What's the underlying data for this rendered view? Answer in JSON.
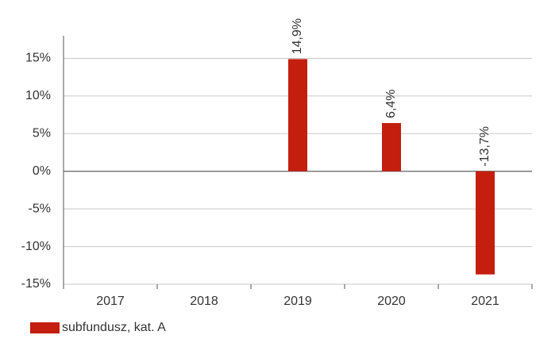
{
  "chart_data": {
    "type": "bar",
    "categories": [
      "2017",
      "2018",
      "2019",
      "2020",
      "2021"
    ],
    "series": [
      {
        "name": "subfundusz, kat. A",
        "color": "#c41e0f",
        "values": [
          null,
          null,
          14.9,
          6.4,
          -13.7
        ],
        "value_labels": [
          null,
          null,
          "14,9%",
          "6,4%",
          "-13,7%"
        ]
      }
    ],
    "ylim": [
      -15,
      18
    ],
    "yticks": [
      {
        "value": -15,
        "label": "-15%"
      },
      {
        "value": -10,
        "label": "-10%"
      },
      {
        "value": -5,
        "label": "-5%"
      },
      {
        "value": 0,
        "label": "0%"
      },
      {
        "value": 5,
        "label": "5%"
      },
      {
        "value": 10,
        "label": "10%"
      },
      {
        "value": 15,
        "label": "15%"
      }
    ],
    "grid": true
  }
}
